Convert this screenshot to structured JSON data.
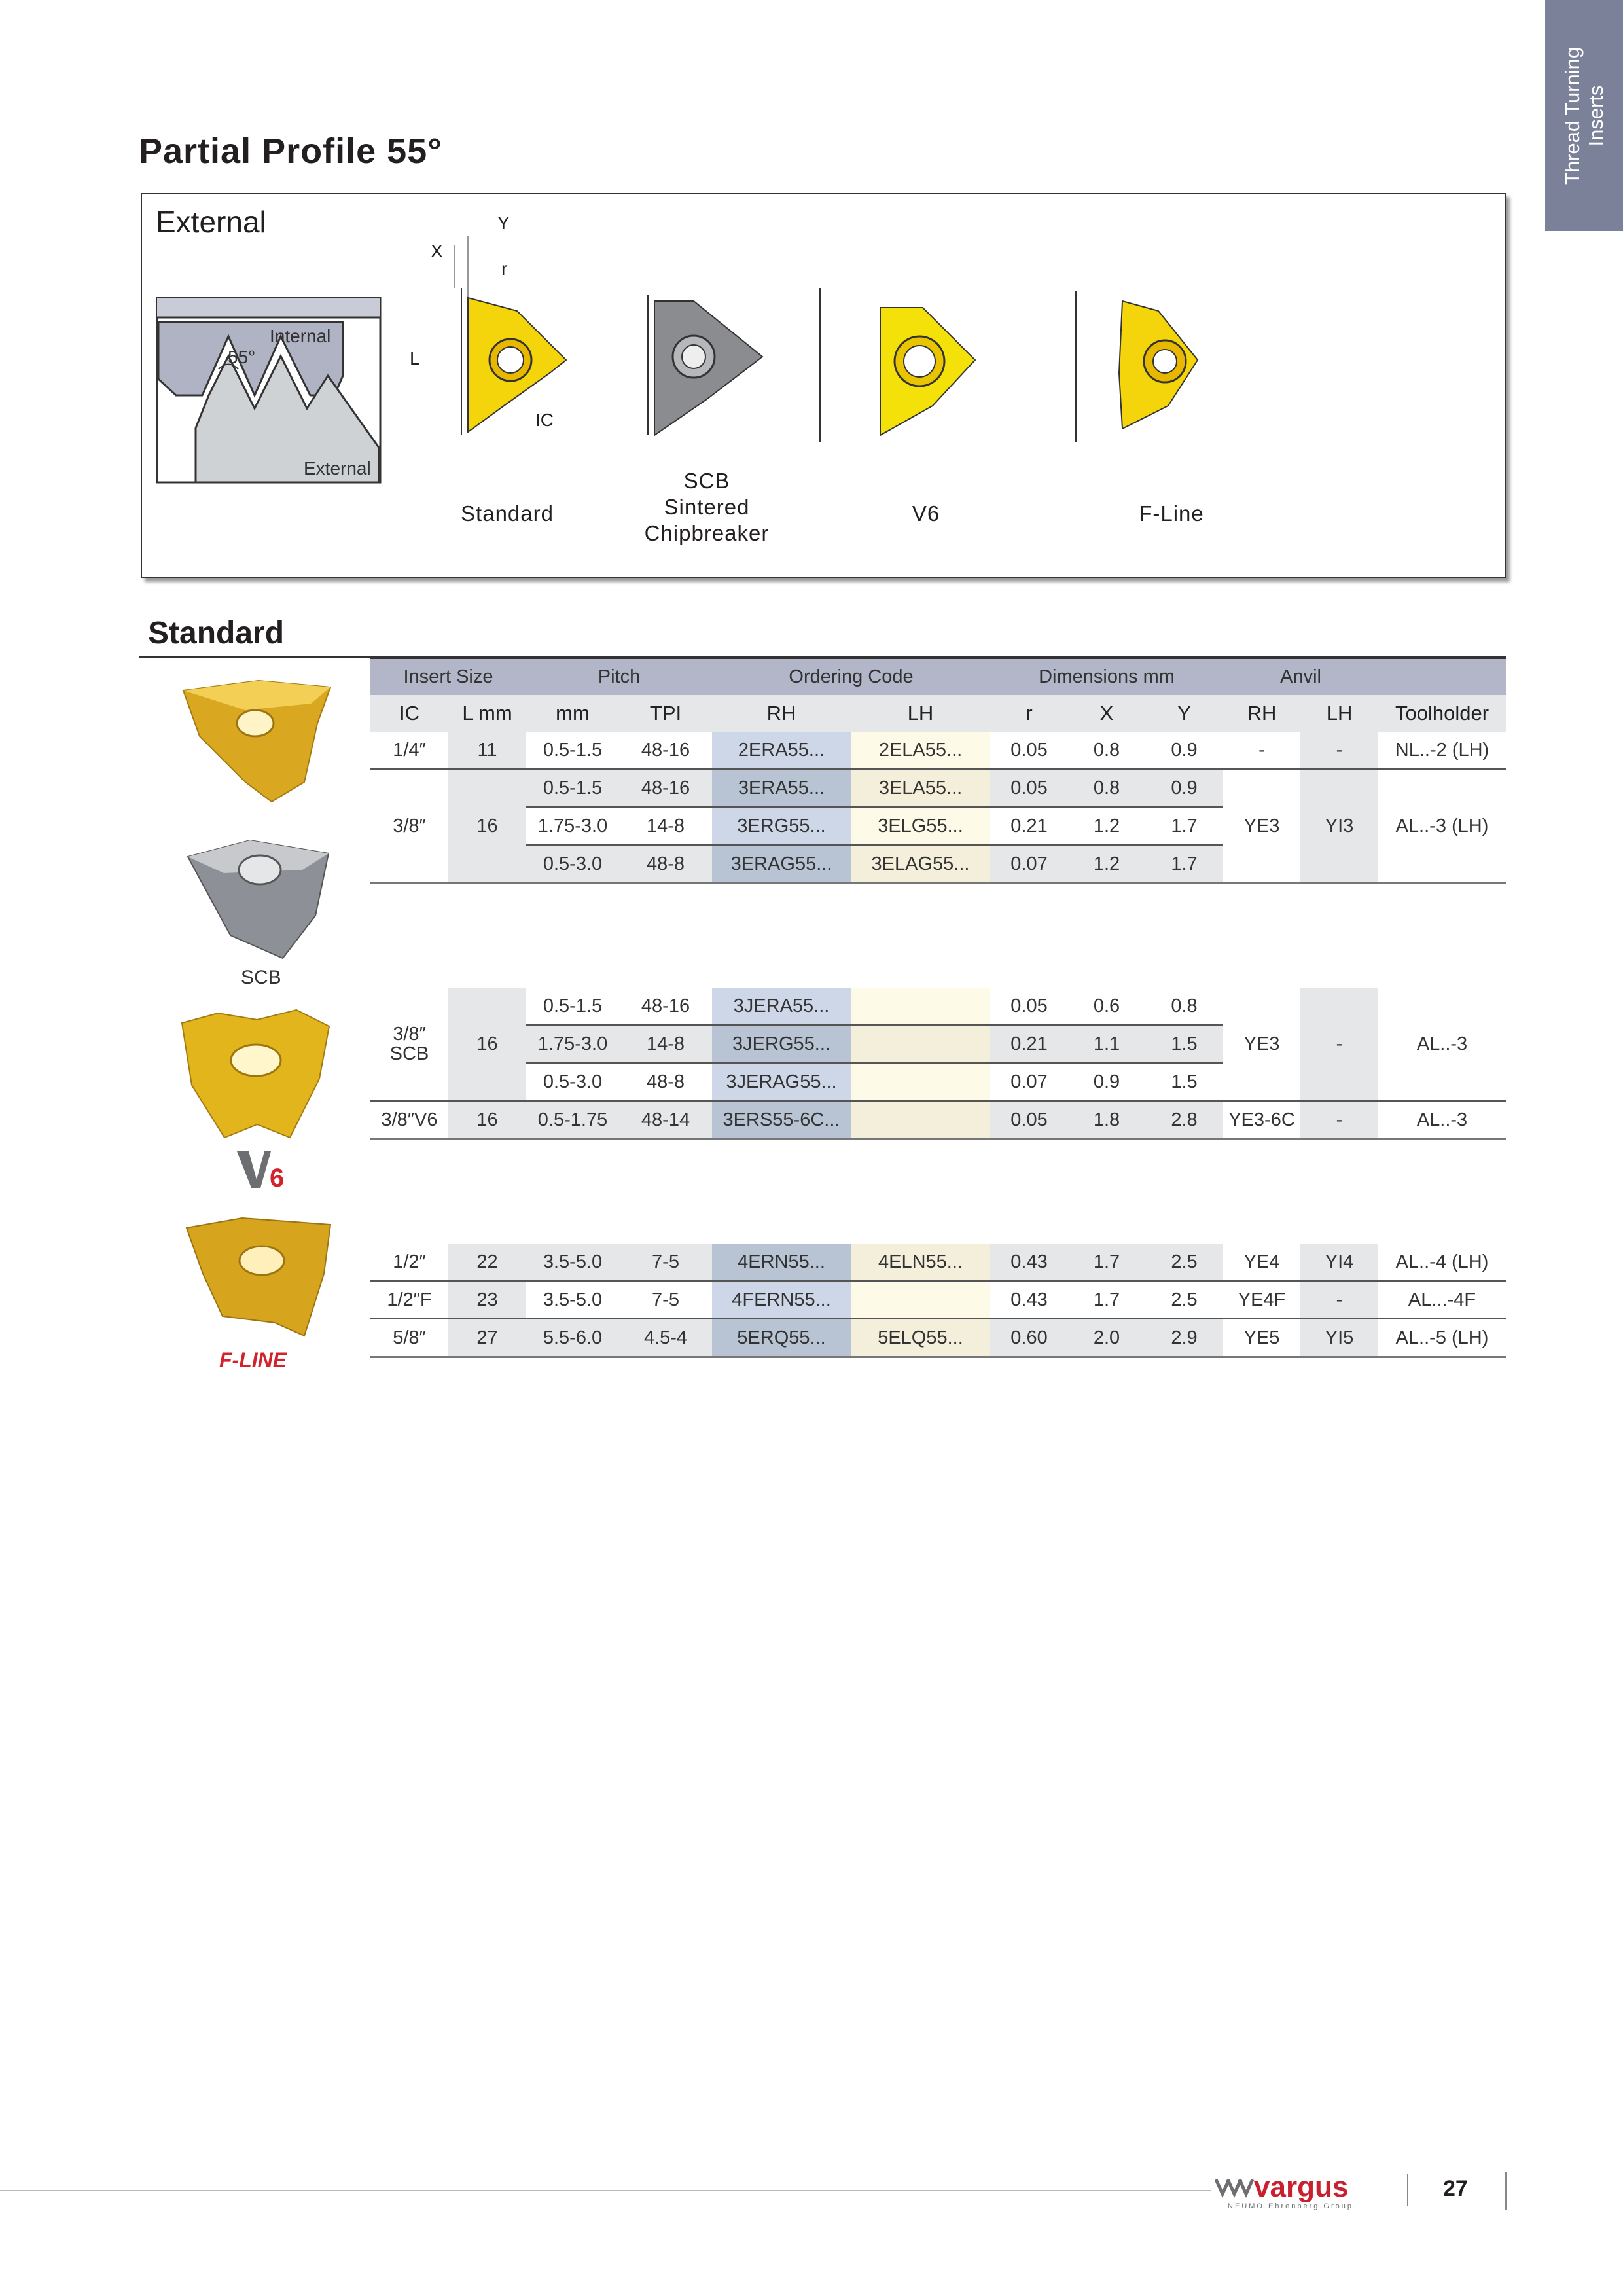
{
  "side_tab": {
    "line1": "Thread Turning",
    "line2": "Inserts",
    "color": "#7b8199"
  },
  "page_title": "Partial Profile 55°",
  "profile_box": {
    "title": "External",
    "thread_diagram": {
      "internal": "Internal",
      "angle": "55°",
      "external": "External"
    },
    "dim_labels": {
      "x": "X",
      "y": "Y",
      "r": "r",
      "l": "L",
      "ic": "IC"
    },
    "types": [
      {
        "label": "Standard",
        "icon": "standard-insert"
      },
      {
        "label": "SCB\nSintered\nChipbreaker",
        "icon": "scb-insert"
      },
      {
        "label": "V6",
        "icon": "v6-insert"
      },
      {
        "label": "F-Line",
        "icon": "f-line-insert"
      }
    ]
  },
  "section_title": "Standard",
  "left_images": {
    "scb_label": "SCB",
    "v6_logo": "V6",
    "fline_logo": "F-LINE"
  },
  "table": {
    "group_headers": [
      "Insert Size",
      "Pitch",
      "Ordering Code",
      "Dimensions mm",
      "Anvil"
    ],
    "columns": [
      "IC",
      "L mm",
      "mm",
      "TPI",
      "RH",
      "LH",
      "r",
      "X",
      "Y",
      "RH",
      "LH",
      "Toolholder"
    ],
    "blocks": [
      [
        {
          "ic": "1/4″",
          "l": "11",
          "anvil_rh": "-",
          "anvil_lh": "-",
          "toolholder": "NL..-2 (LH)",
          "rows": [
            {
              "mm": "0.5-1.5",
              "tpi": "48-16",
              "rh": "2ERA55...",
              "lh": "2ELA55...",
              "r": "0.05",
              "x": "0.8",
              "y": "0.9"
            }
          ]
        },
        {
          "ic": "3/8″",
          "l": "16",
          "anvil_rh": "YE3",
          "anvil_lh": "YI3",
          "toolholder": "AL..-3 (LH)",
          "rows": [
            {
              "mm": "0.5-1.5",
              "tpi": "48-16",
              "rh": "3ERA55...",
              "lh": "3ELA55...",
              "r": "0.05",
              "x": "0.8",
              "y": "0.9"
            },
            {
              "mm": "1.75-3.0",
              "tpi": "14-8",
              "rh": "3ERG55...",
              "lh": "3ELG55...",
              "r": "0.21",
              "x": "1.2",
              "y": "1.7"
            },
            {
              "mm": "0.5-3.0",
              "tpi": "48-8",
              "rh": "3ERAG55...",
              "lh": "3ELAG55...",
              "r": "0.07",
              "x": "1.2",
              "y": "1.7"
            }
          ]
        }
      ],
      [
        {
          "ic": "3/8″\nSCB",
          "l": "16",
          "anvil_rh": "YE3",
          "anvil_lh": "-",
          "toolholder": "AL..-3",
          "rows": [
            {
              "mm": "0.5-1.5",
              "tpi": "48-16",
              "rh": "3JERA55...",
              "lh": "",
              "r": "0.05",
              "x": "0.6",
              "y": "0.8"
            },
            {
              "mm": "1.75-3.0",
              "tpi": "14-8",
              "rh": "3JERG55...",
              "lh": "",
              "r": "0.21",
              "x": "1.1",
              "y": "1.5"
            },
            {
              "mm": "0.5-3.0",
              "tpi": "48-8",
              "rh": "3JERAG55...",
              "lh": "",
              "r": "0.07",
              "x": "0.9",
              "y": "1.5"
            }
          ]
        },
        {
          "ic": "3/8″V6",
          "l": "16",
          "anvil_rh": "YE3-6C",
          "anvil_lh": "-",
          "toolholder": "AL..-3",
          "rows": [
            {
              "mm": "0.5-1.75",
              "tpi": "48-14",
              "rh": "3ERS55-6C...",
              "lh": "",
              "r": "0.05",
              "x": "1.8",
              "y": "2.8"
            }
          ]
        }
      ],
      [
        {
          "ic": "1/2″",
          "l": "22",
          "anvil_rh": "YE4",
          "anvil_lh": "YI4",
          "toolholder": "AL..-4 (LH)",
          "rows": [
            {
              "mm": "3.5-5.0",
              "tpi": "7-5",
              "rh": "4ERN55...",
              "lh": "4ELN55...",
              "r": "0.43",
              "x": "1.7",
              "y": "2.5"
            }
          ]
        },
        {
          "ic": "1/2″F",
          "l": "23",
          "anvil_rh": "YE4F",
          "anvil_lh": "-",
          "toolholder": "AL...-4F",
          "rows": [
            {
              "mm": "3.5-5.0",
              "tpi": "7-5",
              "rh": "4FERN55...",
              "lh": "",
              "r": "0.43",
              "x": "1.7",
              "y": "2.5"
            }
          ]
        },
        {
          "ic": "5/8″",
          "l": "27",
          "anvil_rh": "YE5",
          "anvil_lh": "YI5",
          "toolholder": "AL..-5 (LH)",
          "rows": [
            {
              "mm": "5.5-6.0",
              "tpi": "4.5-4",
              "rh": "5ERQ55...",
              "lh": "5ELQ55...",
              "r": "0.60",
              "x": "2.0",
              "y": "2.9"
            }
          ]
        }
      ]
    ]
  },
  "footer": {
    "brand": "vargus",
    "brand_sub": "NEUMO Ehrenberg Group",
    "page_number": "27",
    "brand_color": "#c8202f"
  }
}
